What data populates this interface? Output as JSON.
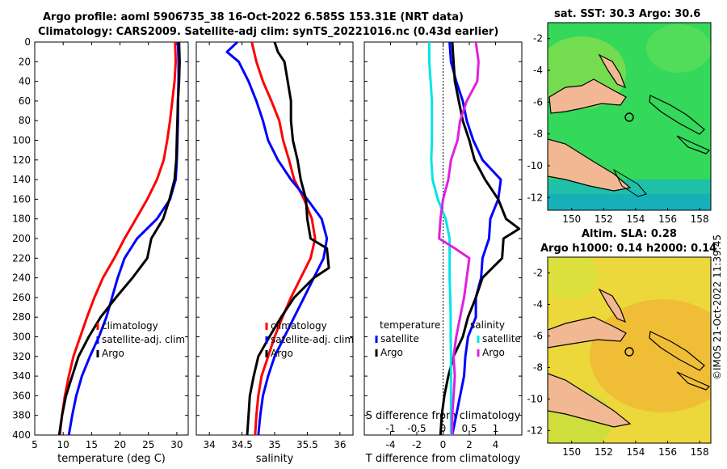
{
  "header": {
    "title_line1": "Argo profile: aoml 5906735_38 16-Oct-2022 6.585S 153.31E (NRT data)",
    "title_line2": "Climatology: CARS2009. Satellite-adj clim: synTS_20221016.nc (0.43d earlier)"
  },
  "colors": {
    "climatology": "#ff0000",
    "satellite": "#0000ff",
    "argo": "#000000",
    "sal_satellite": "#00e5e5",
    "sal_argo": "#e020e0"
  },
  "chart_data": [
    {
      "type": "line",
      "name": "temperature-profile",
      "xlabel": "temperature (deg C)",
      "ylabel": "depth",
      "xlim": [
        5,
        32
      ],
      "ylim": [
        0,
        400
      ],
      "xticks": [
        5,
        10,
        15,
        20,
        25,
        30
      ],
      "yticks": [
        0,
        20,
        40,
        60,
        80,
        100,
        120,
        140,
        160,
        180,
        200,
        220,
        240,
        260,
        280,
        300,
        320,
        340,
        360,
        380,
        400
      ],
      "legend": [
        "climatology",
        "satellite-adj. clim",
        "Argo"
      ],
      "series": [
        {
          "name": "climatology",
          "color": "#ff0000",
          "points": [
            [
              29.7,
              0
            ],
            [
              29.8,
              20
            ],
            [
              29.6,
              40
            ],
            [
              29.2,
              60
            ],
            [
              28.8,
              80
            ],
            [
              28.3,
              100
            ],
            [
              27.7,
              120
            ],
            [
              26.5,
              140
            ],
            [
              24.8,
              160
            ],
            [
              22.8,
              180
            ],
            [
              20.8,
              200
            ],
            [
              19.0,
              220
            ],
            [
              17.0,
              240
            ],
            [
              15.5,
              260
            ],
            [
              14.2,
              280
            ],
            [
              13.0,
              300
            ],
            [
              11.8,
              320
            ],
            [
              11.0,
              340
            ],
            [
              10.3,
              360
            ],
            [
              9.8,
              380
            ],
            [
              9.4,
              400
            ]
          ]
        },
        {
          "name": "satellite-adj. clim",
          "color": "#0000ff",
          "points": [
            [
              30.2,
              0
            ],
            [
              30.3,
              20
            ],
            [
              30.3,
              40
            ],
            [
              30.2,
              60
            ],
            [
              30.2,
              80
            ],
            [
              30.1,
              100
            ],
            [
              30.0,
              120
            ],
            [
              29.8,
              140
            ],
            [
              28.8,
              160
            ],
            [
              26.5,
              180
            ],
            [
              23.0,
              200
            ],
            [
              20.8,
              220
            ],
            [
              19.6,
              240
            ],
            [
              18.6,
              260
            ],
            [
              17.6,
              280
            ],
            [
              16.3,
              300
            ],
            [
              14.7,
              320
            ],
            [
              13.3,
              340
            ],
            [
              12.3,
              360
            ],
            [
              11.6,
              380
            ],
            [
              11.0,
              400
            ]
          ]
        },
        {
          "name": "Argo",
          "color": "#000000",
          "points": [
            [
              30.4,
              0
            ],
            [
              30.5,
              20
            ],
            [
              30.4,
              40
            ],
            [
              30.2,
              60
            ],
            [
              30.1,
              80
            ],
            [
              30.0,
              100
            ],
            [
              29.9,
              120
            ],
            [
              29.6,
              140
            ],
            [
              28.7,
              160
            ],
            [
              27.6,
              180
            ],
            [
              25.5,
              200
            ],
            [
              24.8,
              220
            ],
            [
              22.2,
              240
            ],
            [
              19.3,
              260
            ],
            [
              16.6,
              280
            ],
            [
              14.5,
              300
            ],
            [
              12.7,
              320
            ],
            [
              11.6,
              340
            ],
            [
              10.5,
              360
            ],
            [
              9.8,
              380
            ],
            [
              9.3,
              400
            ]
          ]
        }
      ]
    },
    {
      "type": "line",
      "name": "salinity-profile",
      "xlabel": "salinity",
      "xlim": [
        33.8,
        36.2
      ],
      "ylim": [
        0,
        400
      ],
      "xticks": [
        34,
        34.5,
        35,
        35.5,
        36
      ],
      "legend": [
        "climatology",
        "satellite-adj. clim",
        "Argo"
      ],
      "series": [
        {
          "name": "climatology",
          "color": "#ff0000",
          "points": [
            [
              34.65,
              0
            ],
            [
              34.72,
              20
            ],
            [
              34.82,
              40
            ],
            [
              34.95,
              60
            ],
            [
              35.07,
              80
            ],
            [
              35.13,
              100
            ],
            [
              35.22,
              120
            ],
            [
              35.3,
              140
            ],
            [
              35.45,
              160
            ],
            [
              35.57,
              180
            ],
            [
              35.62,
              200
            ],
            [
              35.55,
              220
            ],
            [
              35.4,
              240
            ],
            [
              35.25,
              260
            ],
            [
              35.12,
              280
            ],
            [
              35.0,
              300
            ],
            [
              34.9,
              320
            ],
            [
              34.8,
              340
            ],
            [
              34.75,
              360
            ],
            [
              34.72,
              380
            ],
            [
              34.7,
              400
            ]
          ]
        },
        {
          "name": "satellite-adj. clim",
          "color": "#0000ff",
          "points": [
            [
              34.43,
              0
            ],
            [
              34.27,
              10
            ],
            [
              34.45,
              20
            ],
            [
              34.6,
              40
            ],
            [
              34.72,
              60
            ],
            [
              34.82,
              80
            ],
            [
              34.9,
              100
            ],
            [
              35.05,
              120
            ],
            [
              35.25,
              140
            ],
            [
              35.5,
              160
            ],
            [
              35.72,
              180
            ],
            [
              35.8,
              200
            ],
            [
              35.75,
              220
            ],
            [
              35.6,
              240
            ],
            [
              35.45,
              260
            ],
            [
              35.3,
              280
            ],
            [
              35.15,
              300
            ],
            [
              35.0,
              320
            ],
            [
              34.9,
              340
            ],
            [
              34.82,
              360
            ],
            [
              34.78,
              380
            ],
            [
              34.75,
              400
            ]
          ]
        },
        {
          "name": "Argo",
          "color": "#000000",
          "points": [
            [
              35.0,
              0
            ],
            [
              35.05,
              10
            ],
            [
              35.15,
              20
            ],
            [
              35.2,
              40
            ],
            [
              35.25,
              60
            ],
            [
              35.25,
              80
            ],
            [
              35.28,
              100
            ],
            [
              35.35,
              120
            ],
            [
              35.4,
              140
            ],
            [
              35.48,
              160
            ],
            [
              35.5,
              180
            ],
            [
              35.55,
              200
            ],
            [
              35.8,
              210
            ],
            [
              35.83,
              230
            ],
            [
              35.6,
              240
            ],
            [
              35.3,
              260
            ],
            [
              35.1,
              280
            ],
            [
              34.92,
              300
            ],
            [
              34.75,
              320
            ],
            [
              34.68,
              340
            ],
            [
              34.62,
              360
            ],
            [
              34.6,
              380
            ],
            [
              34.58,
              400
            ]
          ]
        }
      ]
    },
    {
      "type": "line",
      "name": "difference-profile",
      "xlabel": "T difference from climatology",
      "xlabel_top": "S difference from climatology",
      "xlim": [
        -6,
        6
      ],
      "ylim": [
        0,
        400
      ],
      "xticks": [
        -4,
        -2,
        0,
        2,
        4
      ],
      "xtick_labels": [
        "-4",
        "-2",
        "0",
        "2",
        "4"
      ],
      "xticks_top": [
        -1,
        -0.5,
        0,
        0.5,
        1
      ],
      "xtick_labels_top": [
        "-1",
        "-0.5",
        "0",
        "0.5",
        "1"
      ],
      "legend_left_title": "temperature",
      "legend_right_title": "salinity",
      "legend_left": [
        "satellite",
        "Argo"
      ],
      "legend_right": [
        "satellite",
        "Argo"
      ],
      "series": [
        {
          "name": "T satellite",
          "color": "#0000ff",
          "points": [
            [
              0.5,
              0
            ],
            [
              0.6,
              20
            ],
            [
              1.0,
              40
            ],
            [
              1.5,
              60
            ],
            [
              1.8,
              80
            ],
            [
              2.3,
              100
            ],
            [
              3.0,
              120
            ],
            [
              4.4,
              140
            ],
            [
              4.2,
              160
            ],
            [
              3.6,
              180
            ],
            [
              3.5,
              200
            ],
            [
              3.0,
              220
            ],
            [
              2.9,
              240
            ],
            [
              2.5,
              260
            ],
            [
              2.5,
              280
            ],
            [
              1.9,
              300
            ],
            [
              1.7,
              320
            ],
            [
              1.6,
              340
            ],
            [
              1.3,
              360
            ],
            [
              1.0,
              380
            ],
            [
              0.7,
              400
            ]
          ]
        },
        {
          "name": "T Argo",
          "color": "#000000",
          "points": [
            [
              0.7,
              0
            ],
            [
              0.8,
              20
            ],
            [
              0.9,
              40
            ],
            [
              1.2,
              60
            ],
            [
              1.5,
              80
            ],
            [
              2.0,
              100
            ],
            [
              2.4,
              120
            ],
            [
              3.2,
              140
            ],
            [
              4.2,
              160
            ],
            [
              4.8,
              180
            ],
            [
              5.8,
              190
            ],
            [
              4.6,
              200
            ],
            [
              4.5,
              220
            ],
            [
              3.0,
              240
            ],
            [
              2.5,
              260
            ],
            [
              1.9,
              280
            ],
            [
              1.5,
              300
            ],
            [
              0.8,
              320
            ],
            [
              0.4,
              340
            ],
            [
              0.1,
              360
            ],
            [
              -0.1,
              380
            ],
            [
              -0.2,
              400
            ]
          ]
        },
        {
          "name": "S satellite",
          "color": "#00e5e5",
          "points": [
            [
              -1.05,
              0
            ],
            [
              -1.05,
              20
            ],
            [
              -0.95,
              40
            ],
            [
              -0.85,
              60
            ],
            [
              -0.85,
              80
            ],
            [
              -0.85,
              100
            ],
            [
              -0.9,
              120
            ],
            [
              -0.8,
              140
            ],
            [
              -0.4,
              160
            ],
            [
              0.2,
              180
            ],
            [
              0.5,
              200
            ],
            [
              0.5,
              220
            ],
            [
              0.5,
              240
            ],
            [
              0.55,
              260
            ],
            [
              0.58,
              280
            ],
            [
              0.58,
              300
            ],
            [
              0.6,
              320
            ],
            [
              0.6,
              340
            ],
            [
              0.6,
              360
            ],
            [
              0.6,
              380
            ],
            [
              0.6,
              400
            ]
          ]
        },
        {
          "name": "S Argo",
          "color": "#e020e0",
          "points": [
            [
              2.5,
              0
            ],
            [
              2.7,
              20
            ],
            [
              2.6,
              40
            ],
            [
              1.8,
              60
            ],
            [
              1.3,
              80
            ],
            [
              1.1,
              100
            ],
            [
              0.6,
              120
            ],
            [
              0.4,
              140
            ],
            [
              0.0,
              160
            ],
            [
              -0.2,
              180
            ],
            [
              -0.3,
              200
            ],
            [
              0.9,
              210
            ],
            [
              2.0,
              220
            ],
            [
              1.8,
              240
            ],
            [
              1.6,
              260
            ],
            [
              1.3,
              280
            ],
            [
              1.0,
              300
            ],
            [
              0.8,
              320
            ],
            [
              0.9,
              340
            ],
            [
              0.8,
              360
            ],
            [
              0.7,
              380
            ],
            [
              0.7,
              400
            ]
          ]
        }
      ]
    }
  ],
  "maps": [
    {
      "title": "sat. SST: 30.3 Argo: 30.6",
      "xticks": [
        150,
        152,
        154,
        156,
        158
      ],
      "yticks": [
        -2,
        -4,
        -6,
        -8,
        -10,
        -12
      ]
    },
    {
      "title_line1": "Altim. SLA: 0.28",
      "title_line2": "Argo h1000: 0.14 h2000: 0.14",
      "xticks": [
        150,
        152,
        154,
        156,
        158
      ],
      "yticks": [
        -2,
        -4,
        -6,
        -8,
        -10,
        -12
      ]
    }
  ],
  "credit": "©IMOS 21-Oct-2022 11:39:45"
}
